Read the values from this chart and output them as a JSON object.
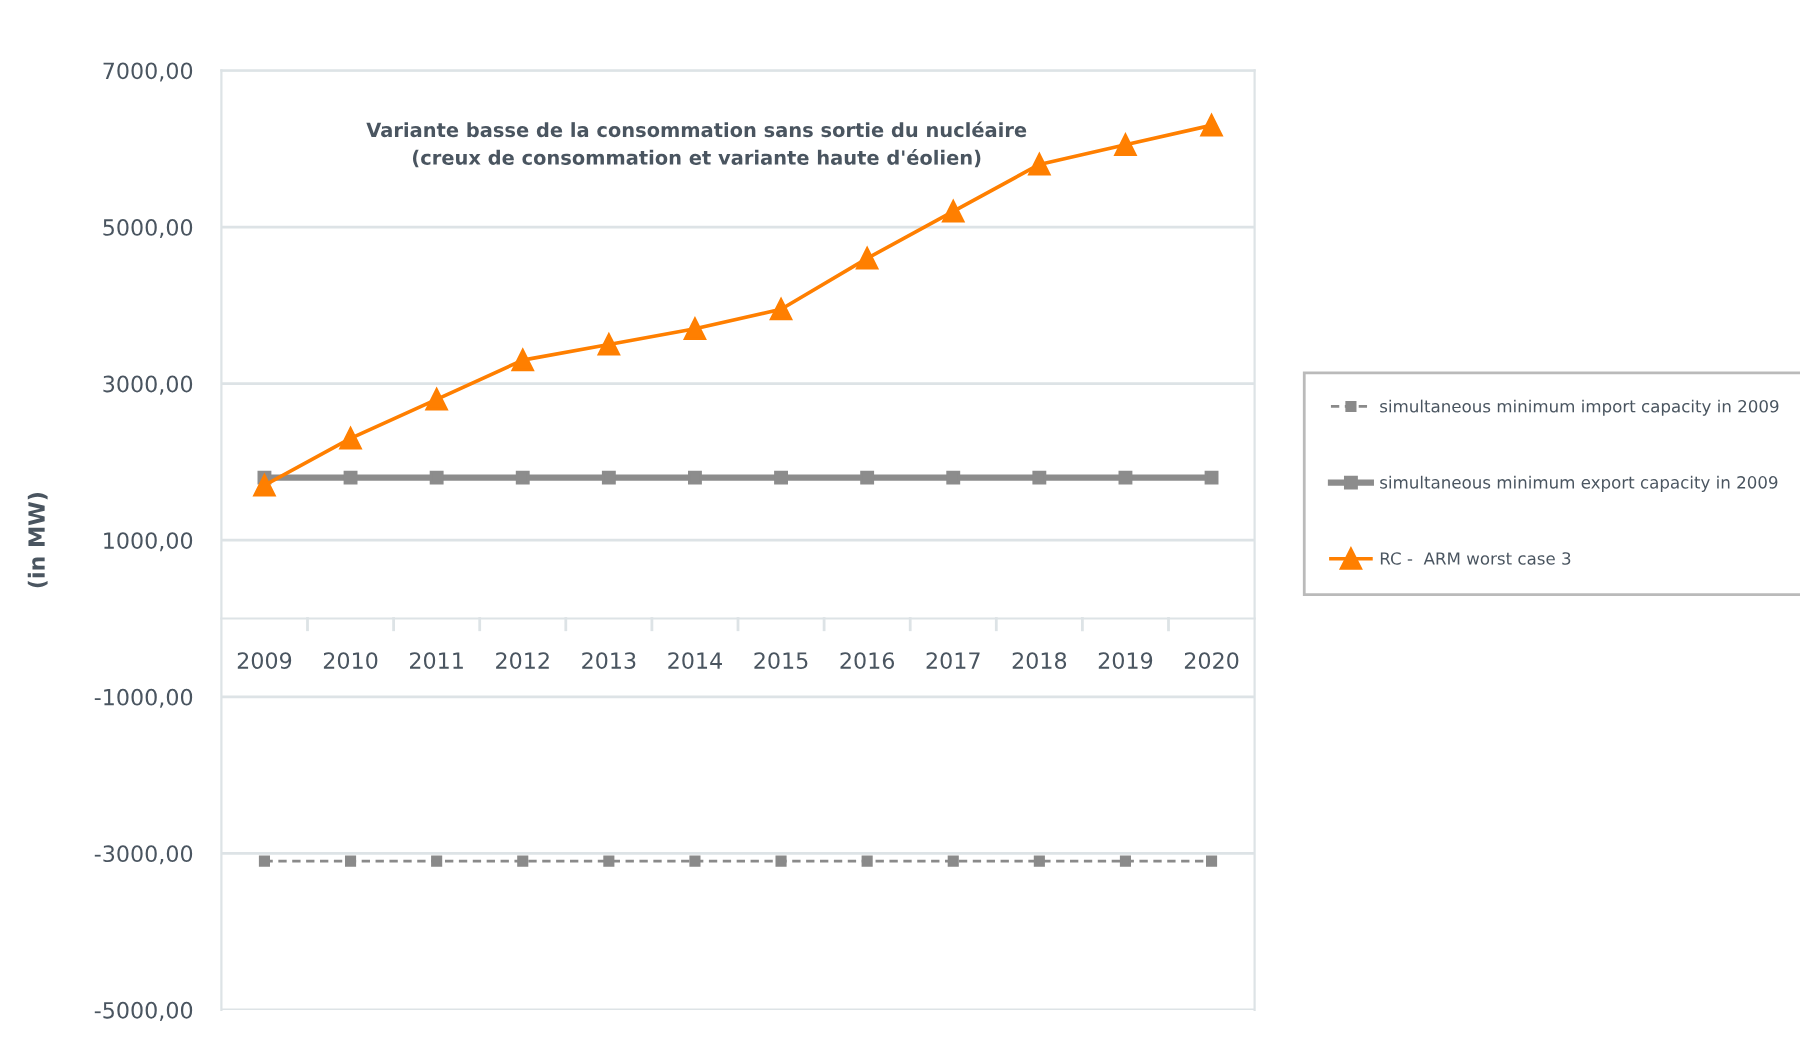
{
  "chart_data": {
    "type": "line",
    "title": "Variante basse de la consommation sans sortie du nucléaire\n(creux de consommation et variante haute d'éolien)",
    "ylabel": "(in MW)",
    "categories": [
      "2009",
      "2010",
      "2011",
      "2012",
      "2013",
      "2014",
      "2015",
      "2016",
      "2017",
      "2018",
      "2019",
      "2020"
    ],
    "series": [
      {
        "name": "simultaneous minimum import capacity in 2009",
        "color": "#8a8a8a",
        "marker": "square",
        "line_style": "dashed",
        "values": [
          -3100,
          -3100,
          -3100,
          -3100,
          -3100,
          -3100,
          -3100,
          -3100,
          -3100,
          -3100,
          -3100,
          -3100
        ]
      },
      {
        "name": "simultaneous minimum export capacity in 2009",
        "color": "#8c8c8c",
        "marker": "square",
        "line_style": "solid",
        "values": [
          1800,
          1800,
          1800,
          1800,
          1800,
          1800,
          1800,
          1800,
          1800,
          1800,
          1800,
          1800
        ]
      },
      {
        "name": "RC -  ARM worst case 3",
        "color": "#ff7f00",
        "marker": "triangle",
        "line_style": "solid",
        "values": [
          1700,
          2300,
          2800,
          3300,
          3500,
          3700,
          3950,
          4600,
          5200,
          5800,
          6050,
          6300
        ]
      }
    ],
    "ylim": [
      -5000,
      7000
    ],
    "yticks": [
      {
        "value": -5000,
        "label": "-5000,00"
      },
      {
        "value": -3000,
        "label": "-3000,00"
      },
      {
        "value": -1000,
        "label": "-1000,00"
      },
      {
        "value": 1000,
        "label": "1000,00"
      },
      {
        "value": 3000,
        "label": "3000,00"
      },
      {
        "value": 5000,
        "label": "5000,00"
      },
      {
        "value": 7000,
        "label": "7000,00"
      }
    ],
    "grid": "y",
    "legend": "right"
  }
}
